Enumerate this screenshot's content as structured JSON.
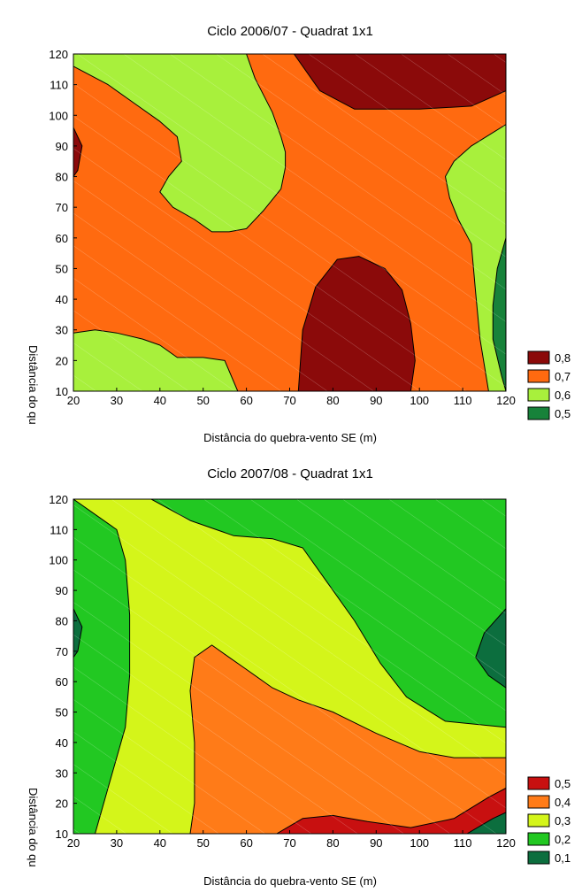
{
  "chart_data": [
    {
      "type": "heatmap",
      "subtype": "filled-contour",
      "title": "Ciclo 2006/07 - Quadrat 1x1",
      "xlabel": "Distância do quebra-vento SE (m)",
      "ylabel": "Distância do qu",
      "xlim": [
        20,
        120
      ],
      "ylim": [
        10,
        120
      ],
      "xticks": [
        20,
        30,
        40,
        50,
        60,
        70,
        80,
        90,
        100,
        110,
        120
      ],
      "yticks": [
        10,
        20,
        30,
        40,
        50,
        60,
        70,
        80,
        90,
        100,
        110,
        120
      ],
      "legend_position": "right",
      "levels": [
        {
          "label": "0,8",
          "color": "#8b0a0a"
        },
        {
          "label": "0,7",
          "color": "#ff6a10"
        },
        {
          "label": "0,6",
          "color": "#a8f03c"
        },
        {
          "label": "0,5",
          "color": "#17823a"
        }
      ],
      "background_level": 1,
      "regions": [
        {
          "level": 2,
          "points": [
            [
              20,
              116
            ],
            [
              28,
              110
            ],
            [
              35,
              103
            ],
            [
              40,
              98
            ],
            [
              44,
              93
            ],
            [
              45,
              85
            ],
            [
              42,
              80
            ],
            [
              40,
              75
            ],
            [
              43,
              70
            ],
            [
              48,
              66
            ],
            [
              52,
              62
            ],
            [
              56,
              62
            ],
            [
              60,
              63
            ],
            [
              64,
              69
            ],
            [
              68,
              76
            ],
            [
              69,
              83
            ],
            [
              69,
              88
            ],
            [
              68,
              93
            ],
            [
              66,
              101
            ],
            [
              62,
              112
            ],
            [
              60,
              120
            ],
            [
              20,
              120
            ]
          ]
        },
        {
          "level": 0,
          "points": [
            [
              71,
              120
            ],
            [
              120,
              120
            ],
            [
              120,
              108
            ],
            [
              112,
              103
            ],
            [
              100,
              102
            ],
            [
              85,
              102
            ],
            [
              77,
              108
            ]
          ]
        },
        {
          "level": 2,
          "points": [
            [
              120,
              97
            ],
            [
              112,
              90
            ],
            [
              108,
              85
            ],
            [
              106,
              80
            ],
            [
              107,
              73
            ],
            [
              109,
              66
            ],
            [
              112,
              58
            ],
            [
              113,
              42
            ],
            [
              114,
              27
            ],
            [
              116,
              10
            ],
            [
              120,
              10
            ]
          ]
        },
        {
          "level": 3,
          "points": [
            [
              120,
              60
            ],
            [
              118,
              50
            ],
            [
              117,
              38
            ],
            [
              117,
              27
            ],
            [
              119,
              15
            ],
            [
              120,
              10
            ]
          ]
        },
        {
          "level": 0,
          "points": [
            [
              72,
              10
            ],
            [
              73,
              30
            ],
            [
              76,
              44
            ],
            [
              81,
              53
            ],
            [
              86,
              54
            ],
            [
              92,
              50
            ],
            [
              96,
              43
            ],
            [
              98,
              32
            ],
            [
              99,
              20
            ],
            [
              98,
              10
            ]
          ]
        },
        {
          "level": 2,
          "points": [
            [
              20,
              29
            ],
            [
              25,
              30
            ],
            [
              30,
              29
            ],
            [
              36,
              27
            ],
            [
              40,
              25
            ],
            [
              44,
              21
            ],
            [
              50,
              21
            ],
            [
              55,
              20
            ],
            [
              58,
              10
            ],
            [
              20,
              10
            ]
          ]
        },
        {
          "level": 0,
          "points": [
            [
              20,
              96
            ],
            [
              22,
              90
            ],
            [
              21,
              82
            ],
            [
              20,
              80
            ]
          ]
        }
      ]
    },
    {
      "type": "heatmap",
      "subtype": "filled-contour",
      "title": "Ciclo 2007/08 - Quadrat 1x1",
      "xlabel": "Distância do quebra-vento SE (m)",
      "ylabel": "Distância do qu",
      "xlim": [
        20,
        120
      ],
      "ylim": [
        10,
        120
      ],
      "xticks": [
        20,
        30,
        40,
        50,
        60,
        70,
        80,
        90,
        100,
        110,
        120
      ],
      "yticks": [
        10,
        20,
        30,
        40,
        50,
        60,
        70,
        80,
        90,
        100,
        110,
        120
      ],
      "legend_position": "right",
      "levels": [
        {
          "label": "0,5",
          "color": "#c81010"
        },
        {
          "label": "0,4",
          "color": "#ff7b18"
        },
        {
          "label": "0,3",
          "color": "#d4f51a"
        },
        {
          "label": "0,2",
          "color": "#22c822"
        },
        {
          "label": "0,1",
          "color": "#0c6e3e"
        }
      ],
      "background_level": 3,
      "regions": [
        {
          "level": 2,
          "points": [
            [
              20,
              120
            ],
            [
              38,
              120
            ],
            [
              47,
              113
            ],
            [
              57,
              108
            ],
            [
              66,
              107
            ],
            [
              73,
              104
            ],
            [
              79,
              92
            ],
            [
              85,
              80
            ],
            [
              91,
              66
            ],
            [
              97,
              55
            ],
            [
              106,
              47
            ],
            [
              120,
              45
            ],
            [
              120,
              10
            ],
            [
              25,
              10
            ],
            [
              28,
              25
            ],
            [
              32,
              45
            ],
            [
              33,
              62
            ],
            [
              33,
              82
            ],
            [
              32,
              100
            ],
            [
              30,
              110
            ]
          ]
        },
        {
          "level": 1,
          "points": [
            [
              47,
              10
            ],
            [
              48,
              20
            ],
            [
              48,
              40
            ],
            [
              47,
              57
            ],
            [
              48,
              68
            ],
            [
              52,
              72
            ],
            [
              56,
              68
            ],
            [
              60,
              64
            ],
            [
              66,
              58
            ],
            [
              72,
              54
            ],
            [
              80,
              50
            ],
            [
              90,
              43
            ],
            [
              100,
              37
            ],
            [
              108,
              35
            ],
            [
              120,
              35
            ],
            [
              120,
              10
            ]
          ]
        },
        {
          "level": 0,
          "points": [
            [
              67,
              10
            ],
            [
              73,
              15
            ],
            [
              80,
              16
            ],
            [
              88,
              14
            ],
            [
              98,
              12
            ],
            [
              108,
              15
            ],
            [
              116,
              22
            ],
            [
              120,
              25
            ],
            [
              120,
              10
            ]
          ]
        },
        {
          "level": 4,
          "points": [
            [
              120,
              84
            ],
            [
              115,
              76
            ],
            [
              113,
              68
            ],
            [
              116,
              62
            ],
            [
              120,
              58
            ]
          ]
        },
        {
          "level": 4,
          "points": [
            [
              20,
              84
            ],
            [
              22,
              78
            ],
            [
              21,
              70
            ],
            [
              20,
              68
            ]
          ]
        },
        {
          "level": 4,
          "points": [
            [
              111,
              10
            ],
            [
              117,
              15
            ],
            [
              120,
              17
            ],
            [
              120,
              10
            ]
          ]
        }
      ]
    }
  ]
}
